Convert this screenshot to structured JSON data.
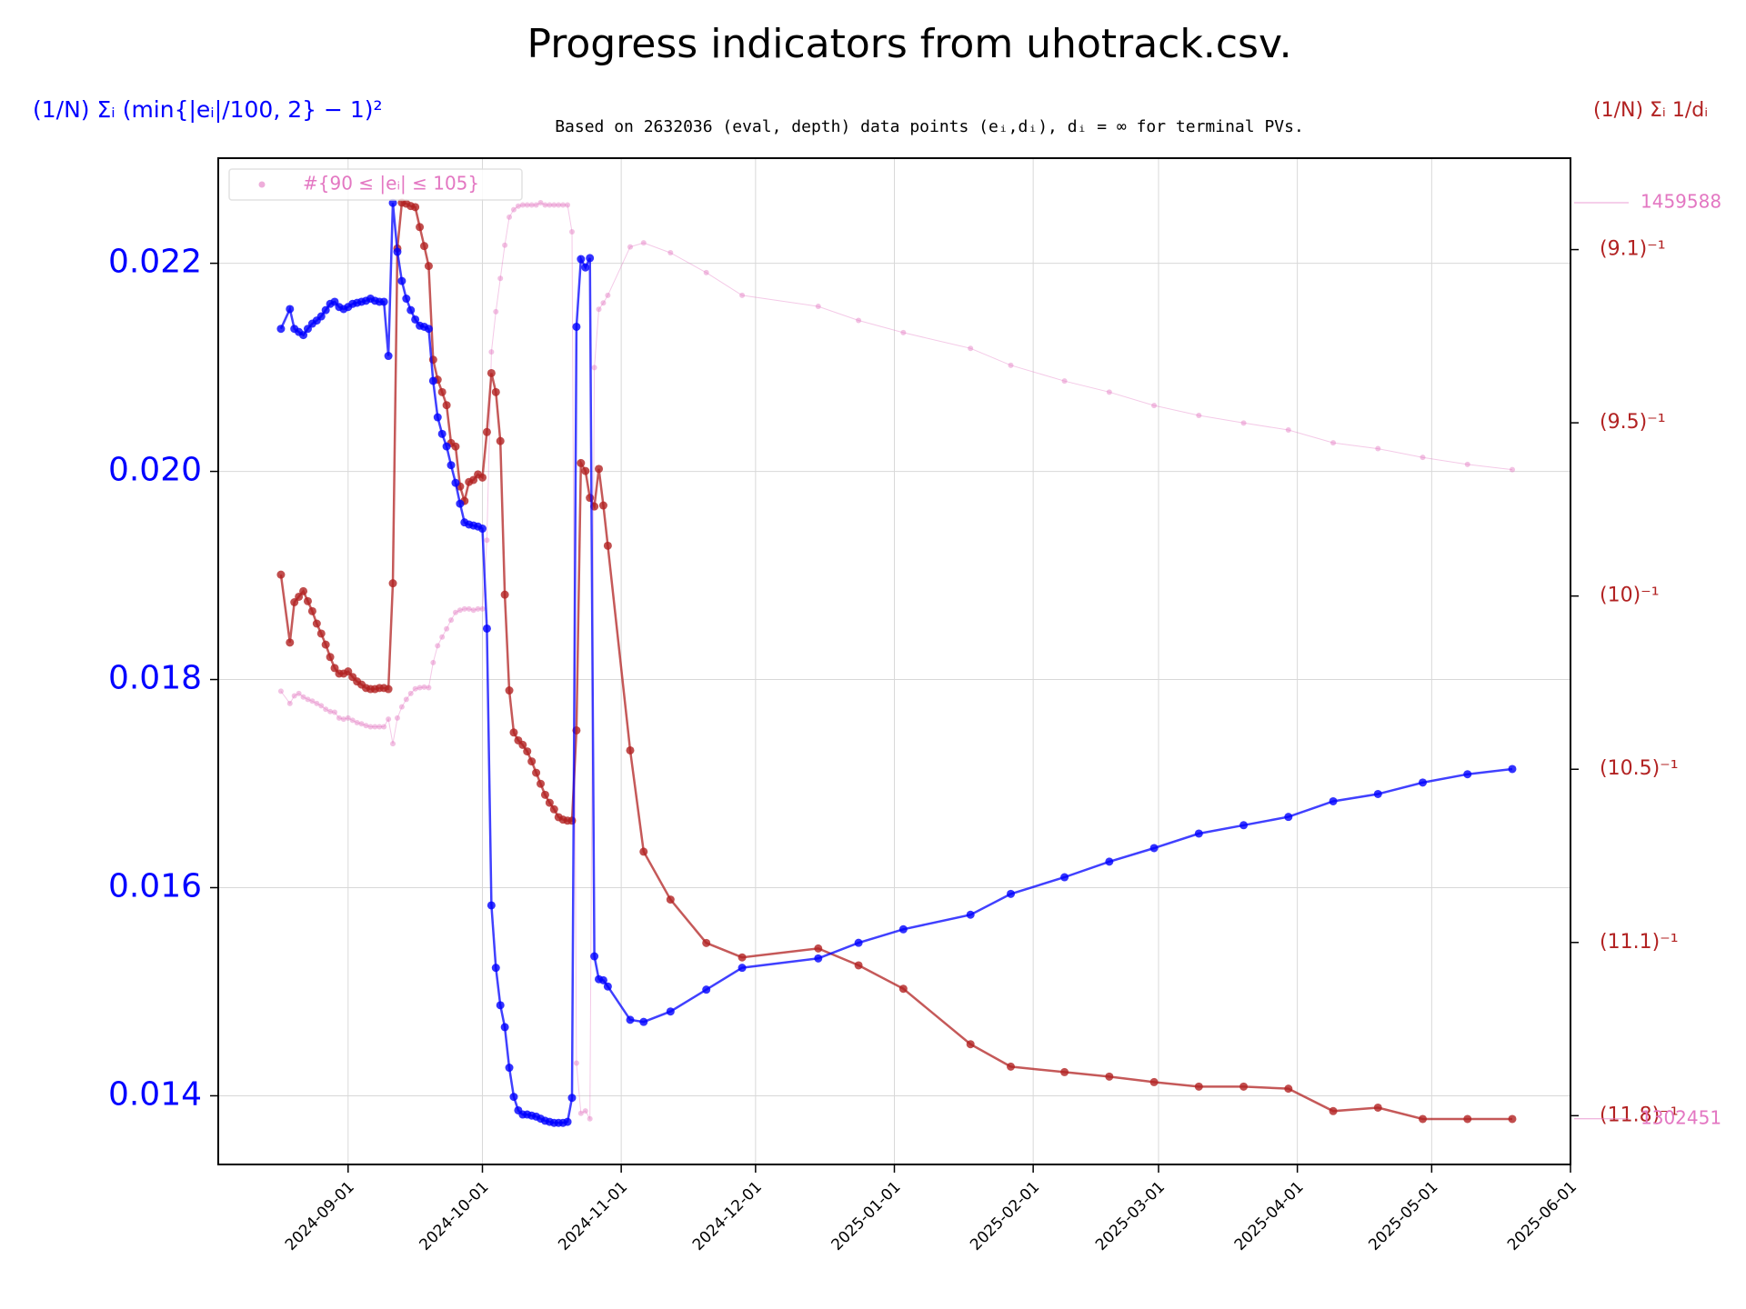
{
  "chart_data": {
    "type": "line",
    "title": "Progress indicators from uhotrack.csv.",
    "subtitle": "Based on 2632036 (eval, depth) data points (eᵢ,dᵢ), dᵢ = ∞ for terminal PVs.",
    "ylabel": "(1/N) Σᵢ (min{|eᵢ|/100, 2} − 1)²",
    "y2label": "(1/N) Σᵢ 1/dᵢ",
    "x": [
      "2024-08-17",
      "2024-08-19",
      "2024-08-20",
      "2024-08-21",
      "2024-08-22",
      "2024-08-23",
      "2024-08-24",
      "2024-08-25",
      "2024-08-26",
      "2024-08-27",
      "2024-08-28",
      "2024-08-29",
      "2024-08-30",
      "2024-08-31",
      "2024-09-01",
      "2024-09-02",
      "2024-09-03",
      "2024-09-04",
      "2024-09-05",
      "2024-09-06",
      "2024-09-07",
      "2024-09-08",
      "2024-09-09",
      "2024-09-10",
      "2024-09-11",
      "2024-09-12",
      "2024-09-13",
      "2024-09-14",
      "2024-09-15",
      "2024-09-16",
      "2024-09-17",
      "2024-09-18",
      "2024-09-19",
      "2024-09-20",
      "2024-09-21",
      "2024-09-22",
      "2024-09-23",
      "2024-09-24",
      "2024-09-25",
      "2024-09-26",
      "2024-09-27",
      "2024-09-28",
      "2024-09-29",
      "2024-09-30",
      "2024-10-01",
      "2024-10-02",
      "2024-10-03",
      "2024-10-04",
      "2024-10-05",
      "2024-10-06",
      "2024-10-07",
      "2024-10-08",
      "2024-10-09",
      "2024-10-10",
      "2024-10-11",
      "2024-10-12",
      "2024-10-13",
      "2024-10-14",
      "2024-10-15",
      "2024-10-16",
      "2024-10-17",
      "2024-10-18",
      "2024-10-19",
      "2024-10-20",
      "2024-10-21",
      "2024-10-22",
      "2024-10-23",
      "2024-10-24",
      "2024-10-25",
      "2024-10-26",
      "2024-10-27",
      "2024-10-28",
      "2024-10-29",
      "2024-11-03",
      "2024-11-06",
      "2024-11-12",
      "2024-11-20",
      "2024-11-28",
      "2024-12-15",
      "2024-12-24",
      "2025-01-03",
      "2025-01-18",
      "2025-01-27",
      "2025-02-08",
      "2025-02-18",
      "2025-02-28",
      "2025-03-10",
      "2025-03-20",
      "2025-03-30",
      "2025-04-09",
      "2025-04-19",
      "2025-04-29",
      "2025-05-09",
      "2025-05-19"
    ],
    "series": [
      {
        "axis": "y",
        "color": "#0000ff",
        "values": [
          0.02137,
          0.02156,
          0.02137,
          0.02134,
          0.02131,
          0.02137,
          0.02142,
          0.02145,
          0.02149,
          0.02155,
          0.02161,
          0.02163,
          0.02158,
          0.02156,
          0.02158,
          0.02161,
          0.02162,
          0.02163,
          0.02164,
          0.02166,
          0.02164,
          0.02163,
          0.02163,
          0.02111,
          0.02258,
          0.02211,
          0.02183,
          0.02166,
          0.02155,
          0.02146,
          0.0214,
          0.02139,
          0.02137,
          0.02087,
          0.02052,
          0.02036,
          0.02024,
          0.02006,
          0.01989,
          0.01969,
          0.01951,
          0.01949,
          0.01948,
          0.01947,
          0.01945,
          0.01849,
          0.01583,
          0.01523,
          0.01487,
          0.01466,
          0.01427,
          0.01399,
          0.01386,
          0.01382,
          0.01382,
          0.01381,
          0.0138,
          0.01378,
          0.01376,
          0.01375,
          0.01374,
          0.01374,
          0.01374,
          0.01375,
          0.01398,
          0.02139,
          0.02204,
          0.02196,
          0.02205,
          0.01534,
          0.01512,
          0.01511,
          0.01505,
          0.01473,
          0.01471,
          0.01481,
          0.01502,
          0.01523,
          0.01532,
          0.01547,
          0.0156,
          0.01574,
          0.01594,
          0.0161,
          0.01625,
          0.01638,
          0.01652,
          0.0166,
          0.01668,
          0.01683,
          0.0169,
          0.01701,
          0.01709,
          0.01714
        ]
      },
      {
        "axis": "y2",
        "color": "#b22222",
        "values": [
          0.10045,
          0.09848,
          0.09965,
          0.09981,
          0.09997,
          0.09968,
          0.09939,
          0.09903,
          0.09874,
          0.09842,
          0.09806,
          0.09774,
          0.09758,
          0.09758,
          0.09764,
          0.09748,
          0.09735,
          0.09726,
          0.09716,
          0.09713,
          0.09713,
          0.09716,
          0.09716,
          0.09713,
          0.1002,
          0.10992,
          0.11125,
          0.11122,
          0.11115,
          0.11112,
          0.11054,
          0.10999,
          0.10941,
          0.10669,
          0.10611,
          0.10575,
          0.10537,
          0.10427,
          0.10417,
          0.10301,
          0.10259,
          0.10314,
          0.1032,
          0.10336,
          0.10327,
          0.10459,
          0.1063,
          0.10575,
          0.10433,
          0.09987,
          0.09709,
          0.09587,
          0.09564,
          0.09551,
          0.09532,
          0.09503,
          0.0947,
          0.09438,
          0.09406,
          0.09383,
          0.09364,
          0.09341,
          0.09334,
          0.09331,
          0.09331,
          0.09593,
          0.10369,
          0.10346,
          0.10268,
          0.10243,
          0.10352,
          0.10246,
          0.10129,
          0.09535,
          0.09241,
          0.09102,
          0.08976,
          0.08934,
          0.0896,
          0.08911,
          0.08843,
          0.08682,
          0.08617,
          0.08601,
          0.08588,
          0.08572,
          0.08559,
          0.08559,
          0.08553,
          0.08488,
          0.08498,
          0.08465,
          0.08465,
          0.08465
        ]
      },
      {
        "axis": "y3",
        "name": "#{90 ≤ |eᵢ| ≤ 105}",
        "color": "#e377c2",
        "values": [
          1375800,
          1373700,
          1375000,
          1375400,
          1374800,
          1374400,
          1374100,
          1373700,
          1373300,
          1372700,
          1372300,
          1372200,
          1371200,
          1371000,
          1371200,
          1370800,
          1370400,
          1370200,
          1369900,
          1369700,
          1369700,
          1369700,
          1369700,
          1371000,
          1366800,
          1371200,
          1373100,
          1374400,
          1375400,
          1376200,
          1376400,
          1376500,
          1376400,
          1380700,
          1383600,
          1385100,
          1386500,
          1388000,
          1389300,
          1389700,
          1389900,
          1389900,
          1389700,
          1389900,
          1389900,
          1401700,
          1434000,
          1440900,
          1446600,
          1452300,
          1457100,
          1458400,
          1459000,
          1459200,
          1459200,
          1459200,
          1459200,
          1459588,
          1459200,
          1459200,
          1459200,
          1459200,
          1459200,
          1459200,
          1454600,
          1312000,
          1303400,
          1303800,
          1302451,
          1431300,
          1441300,
          1442400,
          1443700,
          1452000,
          1452700,
          1451000,
          1447600,
          1443700,
          1441800,
          1439400,
          1437300,
          1434600,
          1431700,
          1429000,
          1427100,
          1424800,
          1423100,
          1421800,
          1420600,
          1418400,
          1417400,
          1415900,
          1414700,
          1413800
        ]
      }
    ],
    "xlim": [
      "2024-08-03",
      "2025-06-01"
    ],
    "xticks": [
      "2024-09-01",
      "2024-10-01",
      "2024-11-01",
      "2024-12-01",
      "2025-01-01",
      "2025-02-01",
      "2025-03-01",
      "2025-04-01",
      "2025-05-01",
      "2025-06-01"
    ],
    "ylim": [
      0.01334,
      0.02301
    ],
    "yticks": [
      0.014,
      0.016,
      0.018,
      {
        "value": 0.02,
        "label": "0.020"
      },
      0.022
    ],
    "y2lim": [
      0.08333,
      0.11254
    ],
    "y2ticks": [
      {
        "value": 0.084746,
        "label": "(11.8)⁻¹"
      },
      {
        "value": 0.089774,
        "label": "(11.1)⁻¹"
      },
      {
        "value": 0.094802,
        "label": "(10.5)⁻¹"
      },
      {
        "value": 0.09983,
        "label": "(10)⁻¹"
      },
      {
        "value": 0.104858,
        "label": "(9.5)⁻¹"
      },
      {
        "value": 0.109886,
        "label": "(9.1)⁻¹"
      }
    ],
    "y3lim": [
      1294624,
      1467224
    ],
    "y3ticks": [
      1302451,
      1459588
    ],
    "grid": true,
    "legend": "upper left"
  }
}
